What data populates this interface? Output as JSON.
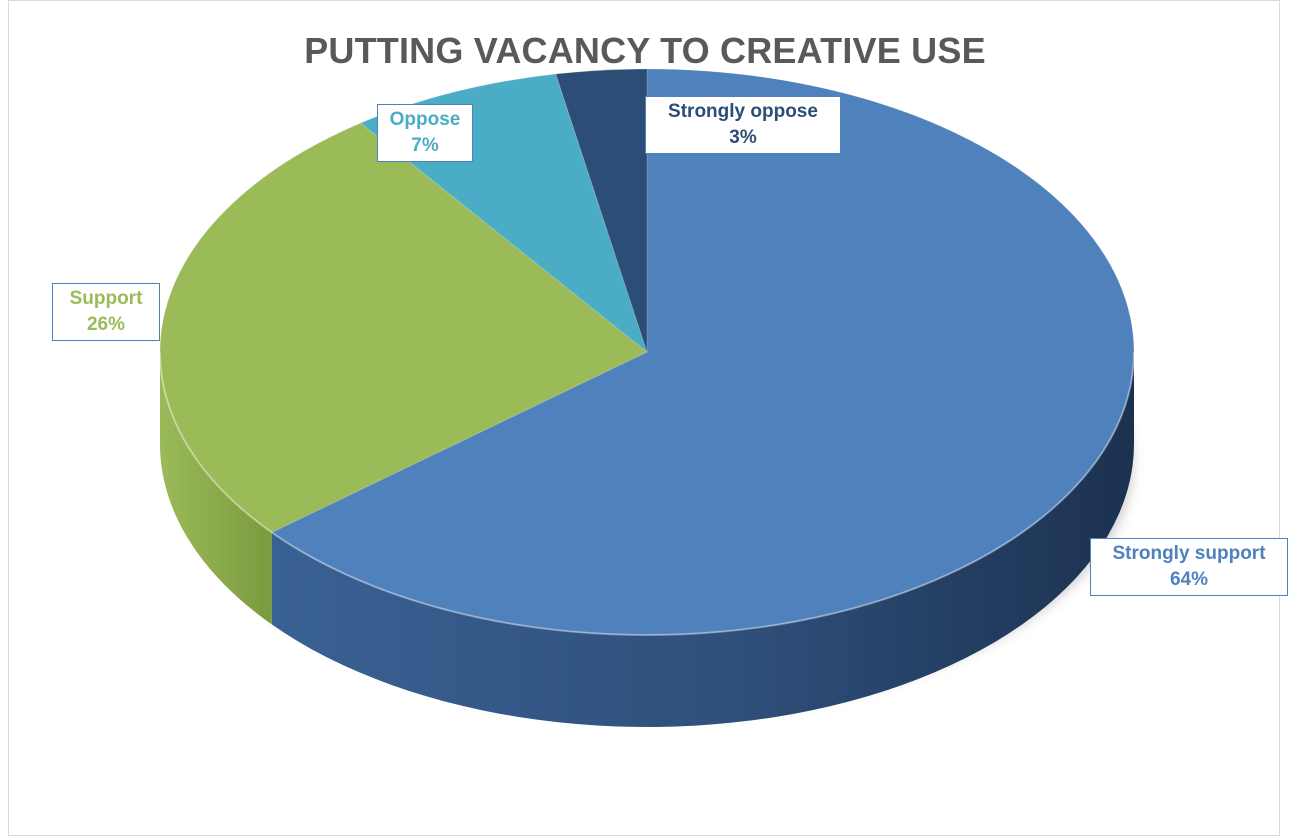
{
  "chart_data": {
    "type": "pie",
    "title": "PUTTING VACANCY TO CREATIVE USE",
    "categories": [
      "Strongly support",
      "Support",
      "Oppose",
      "Strongly oppose"
    ],
    "values": [
      64,
      26,
      7,
      3
    ],
    "value_labels": [
      "64%",
      "26%",
      "7%",
      "3%"
    ],
    "colors": [
      "#4f81bd",
      "#9bbb59",
      "#4bacc6",
      "#2c4d75"
    ],
    "style": "3d",
    "legend": "none"
  }
}
